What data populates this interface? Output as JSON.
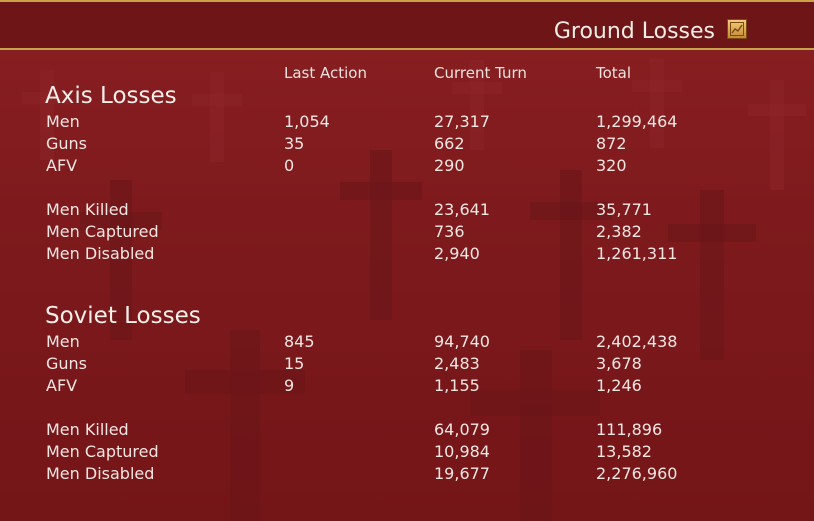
{
  "header": {
    "title": "Ground Losses",
    "chart_button_icon": "chart-icon"
  },
  "columns": {
    "last_action": "Last Action",
    "current_turn": "Current Turn",
    "total": "Total"
  },
  "axis": {
    "title": "Axis Losses",
    "rows": [
      {
        "label": "Men",
        "last": "1,054",
        "current": "27,317",
        "total": "1,299,464"
      },
      {
        "label": "Guns",
        "last": "35",
        "current": "662",
        "total": "872"
      },
      {
        "label": "AFV",
        "last": "0",
        "current": "290",
        "total": "320"
      },
      {
        "label": "Men Killed",
        "last": "",
        "current": "23,641",
        "total": "35,771"
      },
      {
        "label": "Men Captured",
        "last": "",
        "current": "736",
        "total": "2,382"
      },
      {
        "label": "Men Disabled",
        "last": "",
        "current": "2,940",
        "total": "1,261,311"
      }
    ]
  },
  "soviet": {
    "title": "Soviet Losses",
    "rows": [
      {
        "label": "Men",
        "last": "845",
        "current": "94,740",
        "total": "2,402,438"
      },
      {
        "label": "Guns",
        "last": "15",
        "current": "2,483",
        "total": "3,678"
      },
      {
        "label": "AFV",
        "last": "9",
        "current": "1,155",
        "total": "1,246"
      },
      {
        "label": "Men Killed",
        "last": "",
        "current": "64,079",
        "total": "111,896"
      },
      {
        "label": "Men Captured",
        "last": "",
        "current": "10,984",
        "total": "13,582"
      },
      {
        "label": "Men Disabled",
        "last": "",
        "current": "19,677",
        "total": "2,276,960"
      }
    ]
  },
  "colors": {
    "background": "#7e1a1d",
    "header_border": "#c9a24a",
    "text": "#f2e6e2"
  }
}
